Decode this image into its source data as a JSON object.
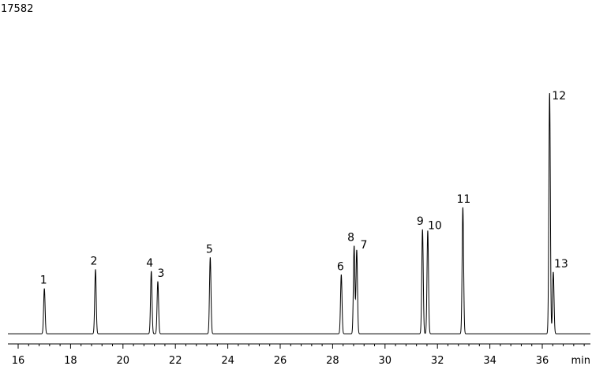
{
  "chart_data": {
    "type": "line",
    "y_max_label": "17582",
    "x_unit": "min",
    "xlim": [
      15.6,
      37.9
    ],
    "ylim": [
      0,
      17582
    ],
    "x_ticks": [
      16,
      18,
      20,
      22,
      24,
      26,
      28,
      30,
      32,
      34,
      36
    ],
    "baseline": 50,
    "peaks": [
      {
        "label": "1",
        "rt": 17.0,
        "height": 3300
      },
      {
        "label": "2",
        "rt": 18.95,
        "height": 4680
      },
      {
        "label": "4",
        "rt": 21.08,
        "height": 4560
      },
      {
        "label": "3",
        "rt": 21.33,
        "height": 3800
      },
      {
        "label": "5",
        "rt": 23.33,
        "height": 5550
      },
      {
        "label": "6",
        "rt": 28.33,
        "height": 4300
      },
      {
        "label": "8",
        "rt": 28.82,
        "height": 6400
      },
      {
        "label": "7",
        "rt": 28.92,
        "height": 6100
      },
      {
        "label": "9",
        "rt": 31.43,
        "height": 7600
      },
      {
        "label": "10",
        "rt": 31.63,
        "height": 7500
      },
      {
        "label": "11",
        "rt": 32.97,
        "height": 9200
      },
      {
        "label": "12",
        "rt": 36.28,
        "height": 17582
      },
      {
        "label": "13",
        "rt": 36.42,
        "height": 4500
      }
    ]
  }
}
